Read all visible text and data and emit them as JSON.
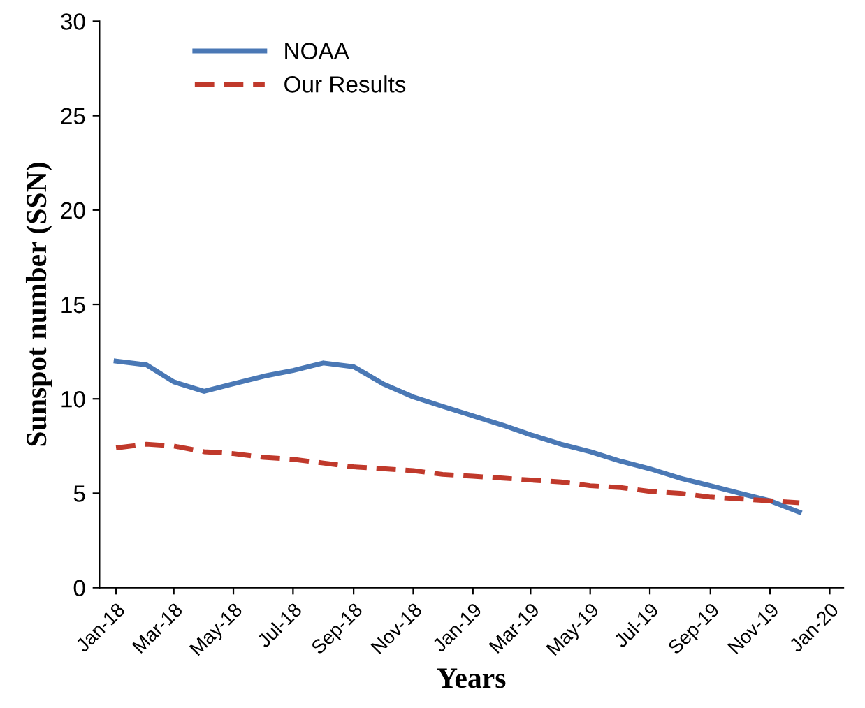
{
  "chart_data": {
    "type": "line",
    "xlabel": "Years",
    "ylabel": "Sunspot number (SSN)",
    "x": [
      "2018-01",
      "2018-02",
      "2018-03",
      "2018-04",
      "2018-05",
      "2018-06",
      "2018-07",
      "2018-08",
      "2018-09",
      "2018-10",
      "2018-11",
      "2018-12",
      "2019-01",
      "2019-02",
      "2019-03",
      "2019-04",
      "2019-05",
      "2019-06",
      "2019-07",
      "2019-08",
      "2019-09",
      "2019-10",
      "2019-11",
      "2019-12"
    ],
    "series": [
      {
        "name": "NOAA",
        "color": "#4a78b5",
        "line_style": "solid",
        "values": [
          12.0,
          11.8,
          10.9,
          10.4,
          10.8,
          11.2,
          11.5,
          11.9,
          11.7,
          10.8,
          10.1,
          9.6,
          9.1,
          8.6,
          8.1,
          7.6,
          7.2,
          6.7,
          6.3,
          5.8,
          5.4,
          5.0,
          4.6,
          4.0
        ]
      },
      {
        "name": "Our Results",
        "color": "#c0392b",
        "line_style": "dashed",
        "values": [
          7.4,
          7.6,
          7.5,
          7.2,
          7.1,
          6.9,
          6.8,
          6.6,
          6.4,
          6.3,
          6.2,
          6.0,
          5.9,
          5.8,
          5.7,
          5.6,
          5.4,
          5.3,
          5.1,
          5.0,
          4.8,
          4.7,
          4.6,
          4.5
        ]
      }
    ],
    "xlim": [
      "2017-12-15",
      "2020-01-15"
    ],
    "xticks": [
      {
        "value": "2018-01",
        "label": "Jan-18"
      },
      {
        "value": "2018-03",
        "label": "Mar-18"
      },
      {
        "value": "2018-05",
        "label": "May-18"
      },
      {
        "value": "2018-07",
        "label": "Jul-18"
      },
      {
        "value": "2018-09",
        "label": "Sep-18"
      },
      {
        "value": "2018-11",
        "label": "Nov-18"
      },
      {
        "value": "2019-01",
        "label": "Jan-19"
      },
      {
        "value": "2019-03",
        "label": "Mar-19"
      },
      {
        "value": "2019-05",
        "label": "May-19"
      },
      {
        "value": "2019-07",
        "label": "Jul-19"
      },
      {
        "value": "2019-09",
        "label": "Sep-19"
      },
      {
        "value": "2019-11",
        "label": "Nov-19"
      },
      {
        "value": "2020-01",
        "label": "Jan-20"
      }
    ],
    "ylim": [
      0,
      30
    ],
    "yticks": [
      0,
      5,
      10,
      15,
      20,
      25,
      30
    ],
    "grid": false,
    "legend": "top left",
    "marker": "none"
  }
}
